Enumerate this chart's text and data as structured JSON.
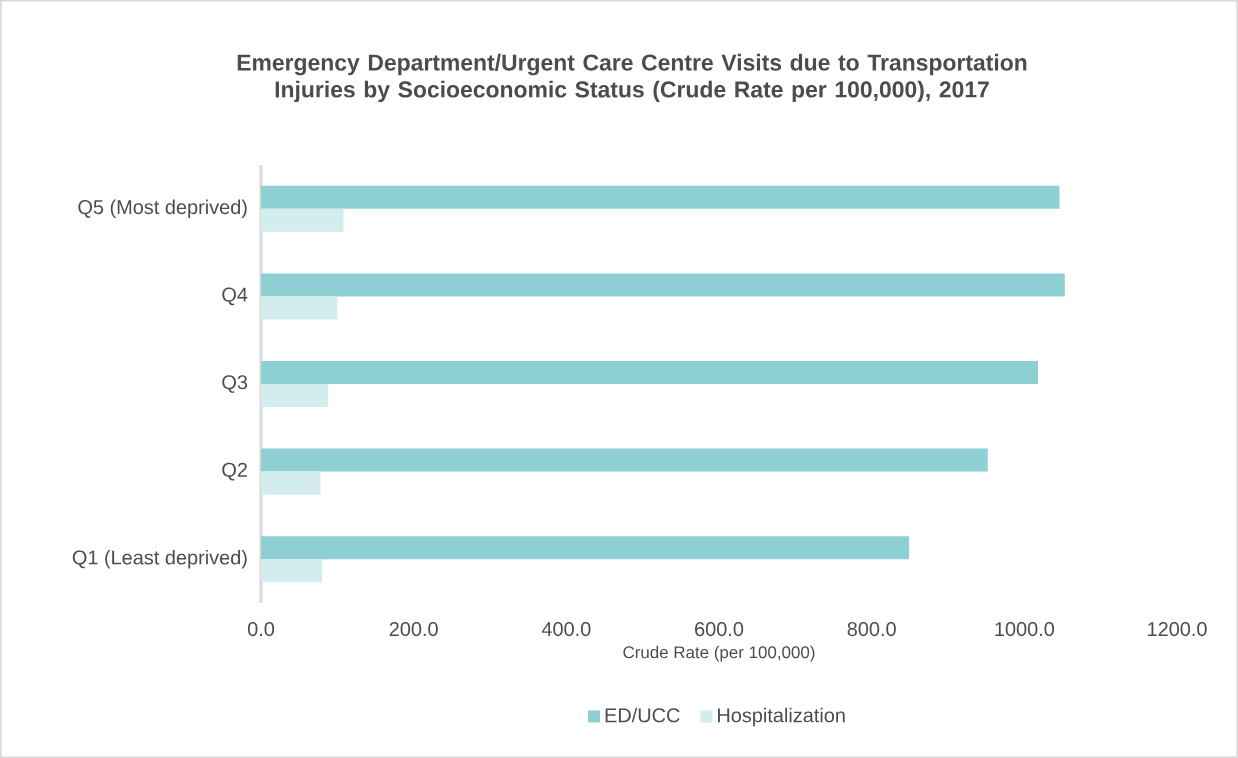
{
  "chart_data": {
    "type": "bar",
    "orientation": "horizontal",
    "title": "Emergency Department/Urgent Care Centre Visits due to Transportation Injuries by Socioeconomic Status (Crude Rate per 100,000), 2017",
    "xlabel": "Crude Rate  (per 100,000)",
    "categories": [
      "Q5 (Most deprived)",
      "Q4",
      "Q3",
      "Q2",
      "Q1 (Least deprived)"
    ],
    "series": [
      {
        "name": "ED/UCC",
        "color": "#8ecfd4",
        "values": [
          1046,
          1053,
          1018,
          952,
          849
        ]
      },
      {
        "name": "Hospitalization",
        "color": "#d3ecee",
        "values": [
          108,
          100,
          88,
          78,
          80
        ]
      }
    ],
    "xlim": [
      0,
      1200
    ],
    "xticks": [
      {
        "value": 0,
        "label": "0.0"
      },
      {
        "value": 200,
        "label": "200.0"
      },
      {
        "value": 400,
        "label": "400.0"
      },
      {
        "value": 600,
        "label": "600.0"
      },
      {
        "value": 800,
        "label": "800.0"
      },
      {
        "value": 1000,
        "label": "1000.0"
      },
      {
        "value": 1200,
        "label": "1200.0"
      }
    ],
    "legend": "bottom"
  }
}
